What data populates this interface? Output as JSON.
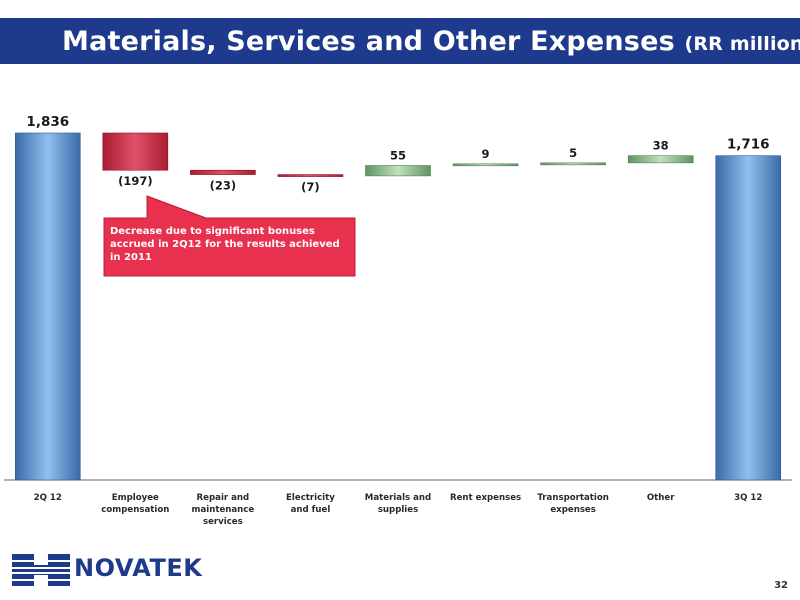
{
  "header": {
    "title": "Materials, Services and Other Expenses",
    "subtitle": "(RR million)",
    "bar_color": "#1e3a8c"
  },
  "chart_data": {
    "type": "waterfall",
    "ylim": [
      0,
      1836
    ],
    "colors": {
      "total": "#4f86c6",
      "decrease": "#c8283e",
      "increase": "#7fb07f"
    },
    "steps": [
      {
        "category": "2Q 12",
        "value": 1836,
        "kind": "total",
        "label": "1,836"
      },
      {
        "category": "Employee compensation",
        "value": -197,
        "kind": "decrease",
        "label": "(197)"
      },
      {
        "category": "Repair and maintenance services",
        "value": -23,
        "kind": "decrease",
        "label": "(23)"
      },
      {
        "category": "Electricity and fuel",
        "value": -7,
        "kind": "decrease",
        "label": "(7)"
      },
      {
        "category": "Materials and supplies",
        "value": 55,
        "kind": "increase",
        "label": "55"
      },
      {
        "category": "Rent expenses",
        "value": 9,
        "kind": "increase",
        "label": "9"
      },
      {
        "category": "Transportation expenses",
        "value": 5,
        "kind": "increase",
        "label": "5"
      },
      {
        "category": "Other",
        "value": 38,
        "kind": "increase",
        "label": "38"
      },
      {
        "category": "3Q 12",
        "value": 1716,
        "kind": "total",
        "label": "1,716"
      }
    ]
  },
  "callout": {
    "text": "Decrease due to significant bonuses accrued in 2Q12 for the results achieved in 2011",
    "color": "#e8314f"
  },
  "footer": {
    "logo_text": "NOVATEK",
    "page_number": "32"
  }
}
